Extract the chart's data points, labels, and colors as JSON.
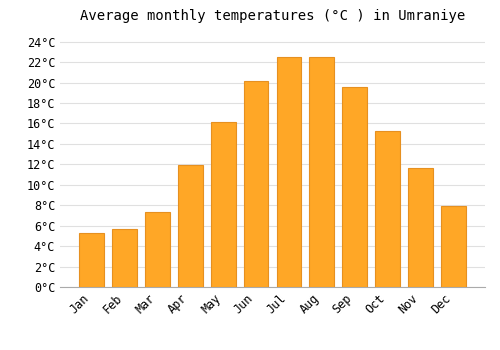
{
  "title": "Average monthly temperatures (°C ) in Umraniye",
  "months": [
    "Jan",
    "Feb",
    "Mar",
    "Apr",
    "May",
    "Jun",
    "Jul",
    "Aug",
    "Sep",
    "Oct",
    "Nov",
    "Dec"
  ],
  "values": [
    5.3,
    5.7,
    7.3,
    11.9,
    16.1,
    20.2,
    22.5,
    22.5,
    19.6,
    15.3,
    11.6,
    7.9
  ],
  "bar_color": "#FFA726",
  "bar_edge_color": "#E69020",
  "background_color": "#ffffff",
  "grid_color": "#e0e0e0",
  "ylim": [
    0,
    25
  ],
  "yticks": [
    0,
    2,
    4,
    6,
    8,
    10,
    12,
    14,
    16,
    18,
    20,
    22,
    24
  ],
  "title_fontsize": 10,
  "tick_fontsize": 8.5
}
